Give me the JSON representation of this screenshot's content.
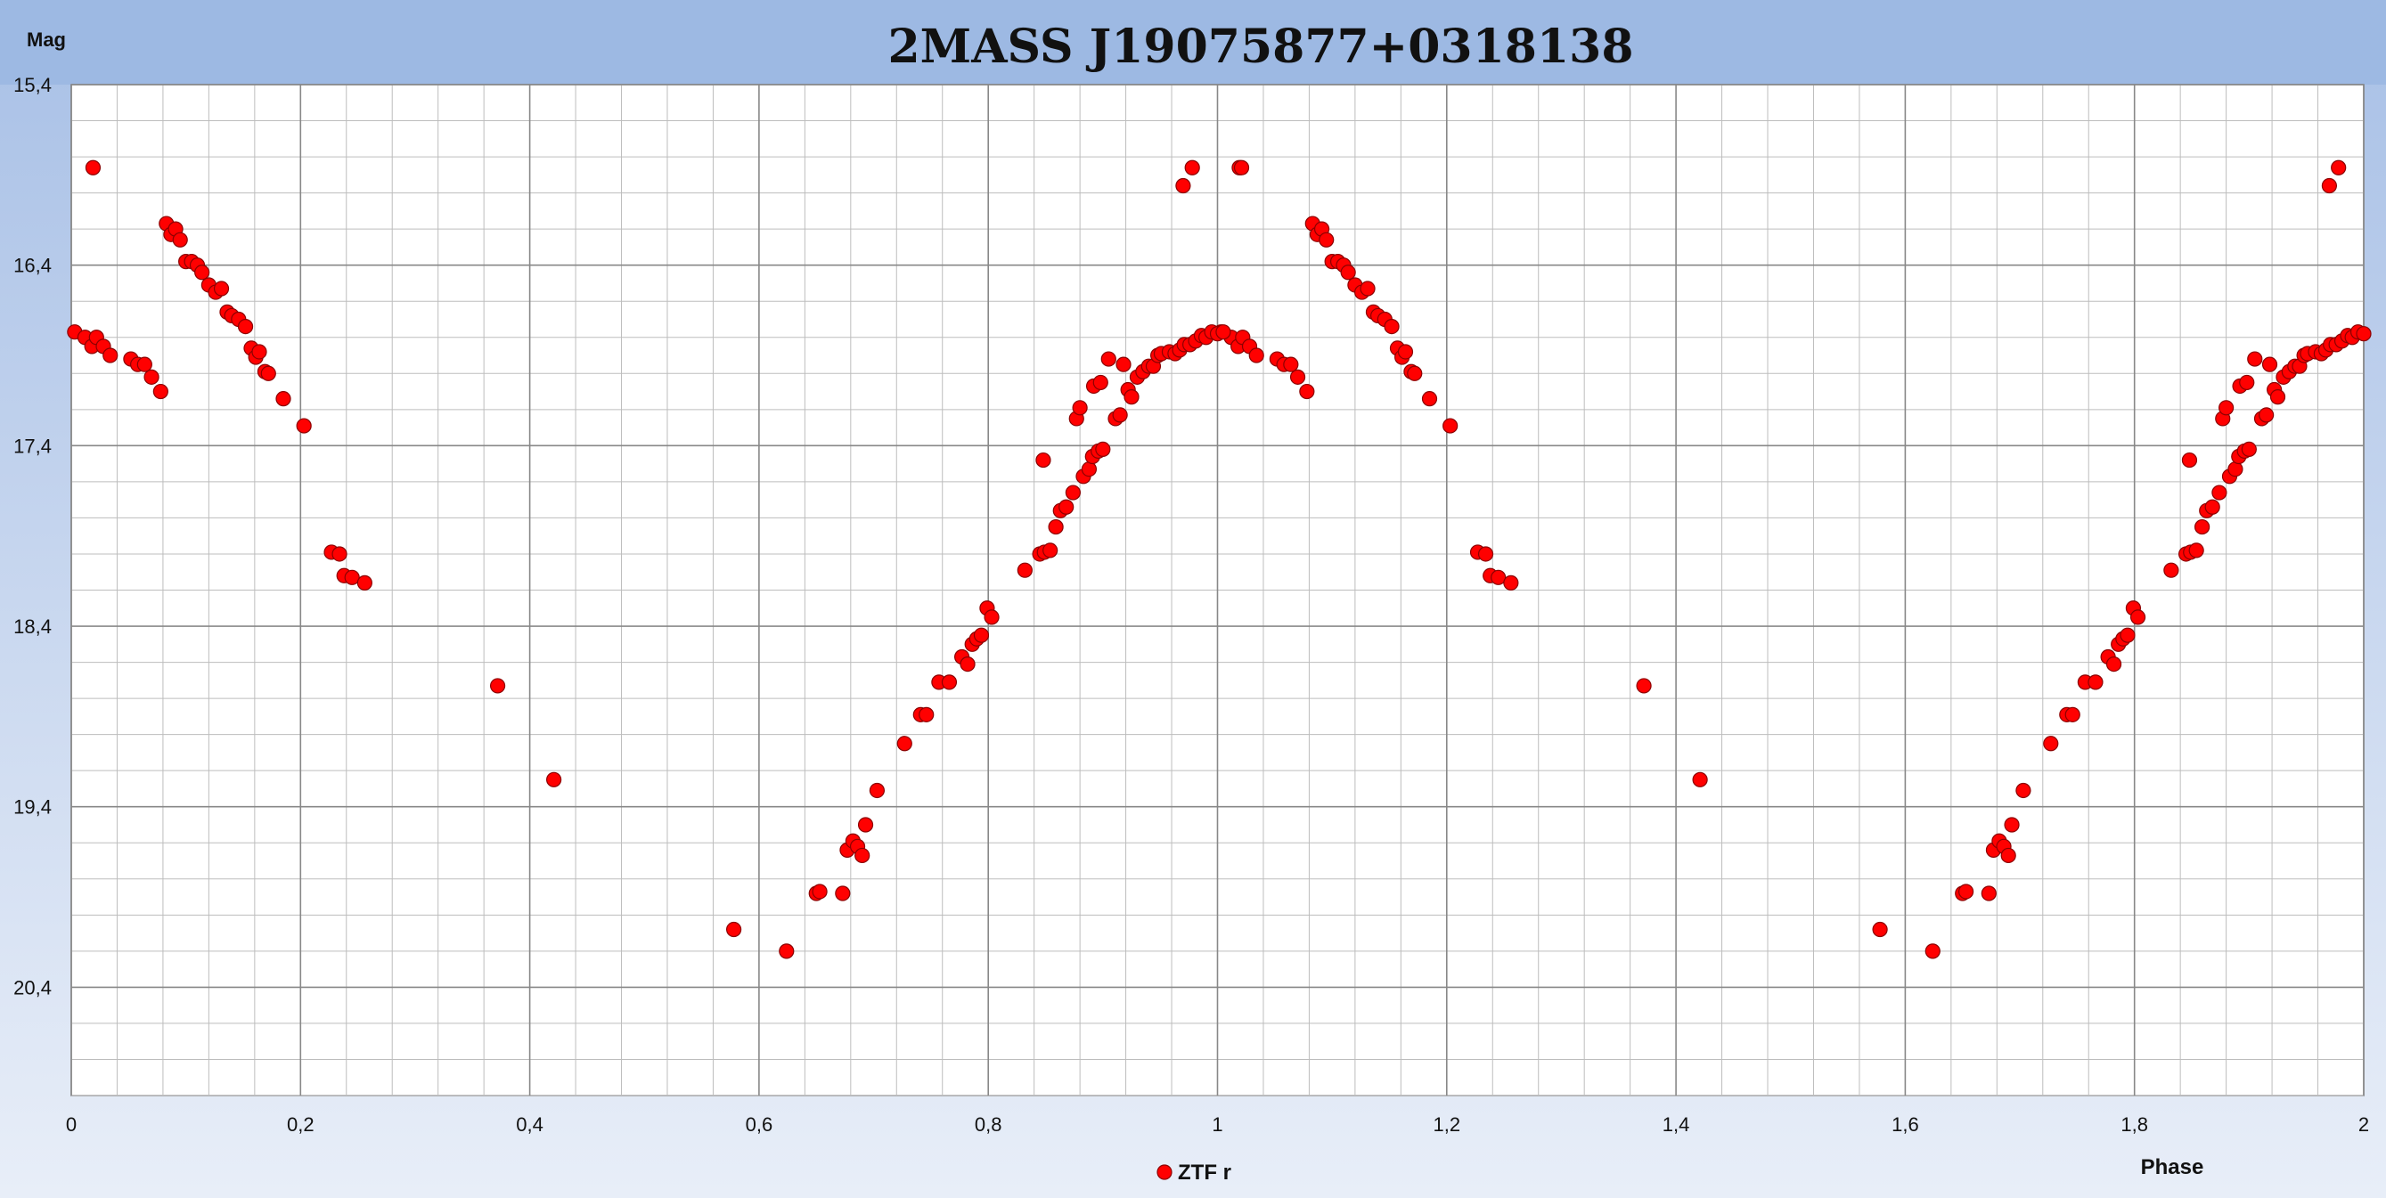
{
  "chart_data": {
    "type": "scatter",
    "title": "2MASS J19075877+0318138",
    "xlabel": "Phase",
    "ylabel": "Mag",
    "xlim": [
      0,
      2
    ],
    "ylim": [
      15.4,
      21.0
    ],
    "y_inverted": true,
    "x_ticks": [
      "0",
      "0,2",
      "0,4",
      "0,6",
      "0,8",
      "1",
      "1,2",
      "1,4",
      "1,6",
      "1,8",
      "2"
    ],
    "x_tick_values": [
      0,
      0.2,
      0.4,
      0.6,
      0.8,
      1.0,
      1.2,
      1.4,
      1.6,
      1.8,
      2.0
    ],
    "y_ticks": [
      "15,4",
      "16,4",
      "17,4",
      "18,4",
      "19,4",
      "20,4"
    ],
    "y_tick_values": [
      15.4,
      16.4,
      17.4,
      18.4,
      19.4,
      20.4
    ],
    "grid": true,
    "legend_position": "bottom-center",
    "colors": {
      "marker_fill": "#ff0000",
      "marker_stroke": "#8b0000",
      "header_band": "#9db9e3",
      "background_gradient_top": "#a8c0e6",
      "background_gradient_bottom": "#e8eef8",
      "grid_major": "#888888",
      "grid_minor": "#bdbdbd"
    },
    "series": [
      {
        "name": "ZTF r",
        "marker": "circle",
        "points": [
          [
            0.003,
            16.77
          ],
          [
            0.012,
            16.8
          ],
          [
            0.018,
            16.85
          ],
          [
            0.022,
            16.8
          ],
          [
            0.028,
            16.85
          ],
          [
            0.034,
            16.9
          ],
          [
            0.019,
            15.86
          ],
          [
            0.052,
            16.92
          ],
          [
            0.058,
            16.95
          ],
          [
            0.064,
            16.95
          ],
          [
            0.07,
            17.02
          ],
          [
            0.078,
            17.1
          ],
          [
            0.083,
            16.17
          ],
          [
            0.087,
            16.23
          ],
          [
            0.091,
            16.2
          ],
          [
            0.095,
            16.26
          ],
          [
            0.1,
            16.38
          ],
          [
            0.105,
            16.38
          ],
          [
            0.11,
            16.4
          ],
          [
            0.114,
            16.44
          ],
          [
            0.12,
            16.51
          ],
          [
            0.126,
            16.55
          ],
          [
            0.131,
            16.53
          ],
          [
            0.136,
            16.66
          ],
          [
            0.14,
            16.68
          ],
          [
            0.146,
            16.7
          ],
          [
            0.152,
            16.74
          ],
          [
            0.157,
            16.86
          ],
          [
            0.161,
            16.91
          ],
          [
            0.164,
            16.88
          ],
          [
            0.169,
            16.99
          ],
          [
            0.172,
            17.0
          ],
          [
            0.185,
            17.14
          ],
          [
            0.203,
            17.29
          ],
          [
            0.227,
            17.99
          ],
          [
            0.234,
            18.0
          ],
          [
            0.238,
            18.12
          ],
          [
            0.245,
            18.13
          ],
          [
            0.256,
            18.16
          ],
          [
            0.372,
            18.73
          ],
          [
            0.421,
            19.25
          ],
          [
            0.578,
            20.08
          ],
          [
            0.624,
            20.2
          ],
          [
            0.65,
            19.88
          ],
          [
            0.653,
            19.87
          ],
          [
            0.673,
            19.88
          ],
          [
            0.677,
            19.64
          ],
          [
            0.682,
            19.59
          ],
          [
            0.686,
            19.62
          ],
          [
            0.69,
            19.67
          ],
          [
            0.693,
            19.5
          ],
          [
            0.703,
            19.31
          ],
          [
            0.727,
            19.05
          ],
          [
            0.741,
            18.89
          ],
          [
            0.746,
            18.89
          ],
          [
            0.757,
            18.71
          ],
          [
            0.766,
            18.71
          ],
          [
            0.777,
            18.57
          ],
          [
            0.782,
            18.61
          ],
          [
            0.786,
            18.5
          ],
          [
            0.79,
            18.47
          ],
          [
            0.794,
            18.45
          ],
          [
            0.799,
            18.3
          ],
          [
            0.803,
            18.35
          ],
          [
            0.832,
            18.09
          ],
          [
            0.845,
            18.0
          ],
          [
            0.849,
            17.99
          ],
          [
            0.854,
            17.98
          ],
          [
            0.848,
            17.48
          ],
          [
            0.859,
            17.85
          ],
          [
            0.863,
            17.76
          ],
          [
            0.868,
            17.74
          ],
          [
            0.874,
            17.66
          ],
          [
            0.877,
            17.25
          ],
          [
            0.88,
            17.19
          ],
          [
            0.883,
            17.57
          ],
          [
            0.888,
            17.53
          ],
          [
            0.891,
            17.46
          ],
          [
            0.896,
            17.43
          ],
          [
            0.9,
            17.42
          ],
          [
            0.892,
            17.07
          ],
          [
            0.898,
            17.05
          ],
          [
            0.905,
            16.92
          ],
          [
            0.911,
            17.25
          ],
          [
            0.915,
            17.23
          ],
          [
            0.918,
            16.95
          ],
          [
            0.922,
            17.09
          ],
          [
            0.925,
            17.13
          ],
          [
            0.93,
            17.02
          ],
          [
            0.935,
            16.99
          ],
          [
            0.94,
            16.96
          ],
          [
            0.944,
            16.96
          ],
          [
            0.948,
            16.9
          ],
          [
            0.951,
            16.89
          ],
          [
            0.958,
            16.88
          ],
          [
            0.963,
            16.89
          ],
          [
            0.967,
            16.87
          ],
          [
            0.971,
            16.84
          ],
          [
            0.976,
            16.84
          ],
          [
            0.981,
            16.82
          ],
          [
            0.986,
            16.79
          ],
          [
            0.99,
            16.8
          ],
          [
            0.995,
            16.77
          ],
          [
            1.0,
            16.78
          ],
          [
            1.005,
            16.77
          ],
          [
            0.97,
            15.96
          ],
          [
            0.978,
            15.86
          ],
          [
            1.021,
            15.86
          ]
        ]
      }
    ]
  }
}
